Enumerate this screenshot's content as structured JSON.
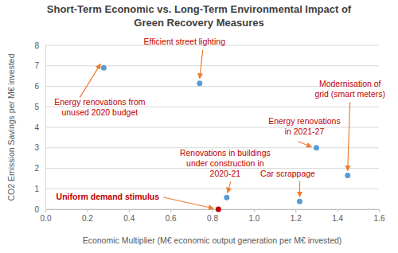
{
  "chart_data": {
    "type": "scatter",
    "title": "Short-Term Economic vs. Long-Term Environmental Impact of\nGreen Recovery Measures",
    "x_label": "Economic Multiplier (M€ economic output generation per M€ invested)",
    "y_label": "CO2 Emission Savings per M€ invested",
    "x": [
      0.28,
      0.74,
      1.45,
      1.3,
      0.87,
      1.22,
      0.83
    ],
    "values": [
      6.9,
      6.15,
      1.65,
      3.0,
      0.57,
      0.38,
      0.0
    ],
    "labels": [
      "Energy renovations from\nunused 2020 budget",
      "Efficient street lighting",
      "Modernisation of\ngrid (smart meters)",
      "Energy renovations\nin 2021-27",
      "Renovations in buildings\nunder construction in\n2020-21",
      "Car scrappage",
      "Uniform demand stimulus"
    ],
    "colors": [
      "#5b9bd5",
      "#5b9bd5",
      "#5b9bd5",
      "#5b9bd5",
      "#5b9bd5",
      "#5b9bd5",
      "#c00000"
    ],
    "xlim": [
      0,
      1.6
    ],
    "xticks": [
      {
        "value": 0,
        "label": "0.0"
      },
      0.2,
      0.4,
      0.6,
      0.8,
      {
        "value": 1,
        "label": "1.0"
      },
      1.2,
      1.4,
      1.6
    ],
    "ylim": [
      0,
      8
    ],
    "yticks": [
      0,
      1,
      2,
      3,
      4,
      5,
      6,
      7,
      8
    ],
    "grid": true
  }
}
